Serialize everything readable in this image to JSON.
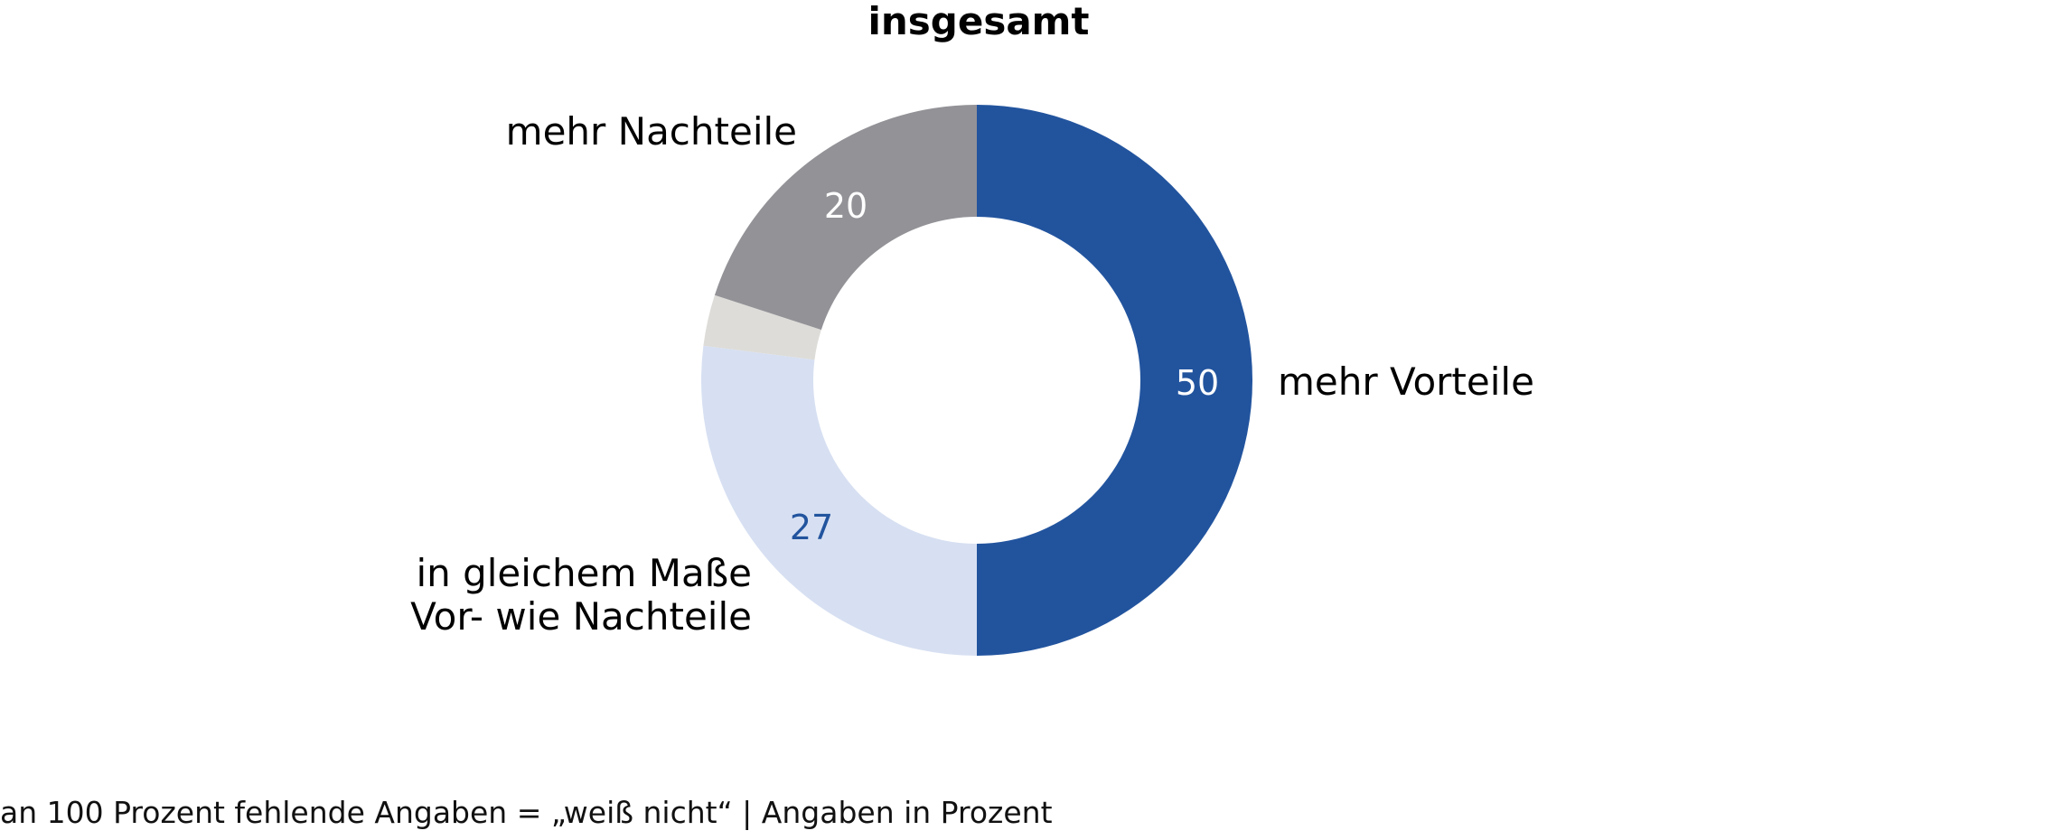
{
  "chart_data": {
    "type": "pie",
    "variant": "donut",
    "title": "insgesamt",
    "slices": [
      {
        "label": "mehr Vorteile",
        "value": 50,
        "color": "#22549e",
        "value_label": "50",
        "value_label_color": "#ffffff"
      },
      {
        "label": "in gleichem Maße Vor- wie Nachteile",
        "label_lines": [
          "in gleichem Maße",
          "Vor- wie Nachteile"
        ],
        "value": 27,
        "color": "#d7e0f2",
        "value_label": "27",
        "value_label_color": "#22549e"
      },
      {
        "label": "",
        "value": 3,
        "color": "#dddcd8",
        "value_label": ""
      },
      {
        "label": "mehr Nachteile",
        "value": 20,
        "color": "#939297",
        "value_label": "20",
        "value_label_color": "#ffffff"
      }
    ],
    "start_angle": "top",
    "direction": "clockwise",
    "legend": "none"
  },
  "footnote": "an 100 Prozent fehlende Angaben = „weiß nicht“ | Angaben in Prozent"
}
